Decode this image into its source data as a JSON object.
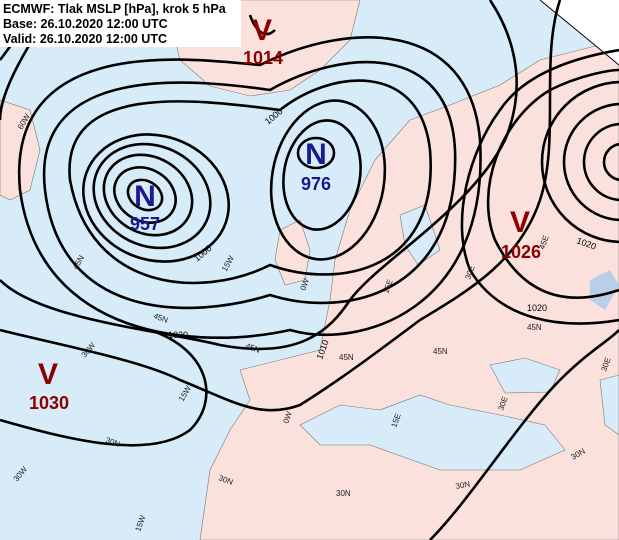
{
  "header": {
    "lines": [
      "ECMWF: Tlak MSLP [hPa], krok 5 hPa",
      "Base: 26.10.2020 12:00 UTC",
      "Valid: 26.10.2020 12:00 UTC"
    ]
  },
  "centers": [
    {
      "symbol": "V",
      "value": 1014
    },
    {
      "symbol": "N",
      "value": 957
    },
    {
      "symbol": "N",
      "value": 976
    },
    {
      "symbol": "V",
      "value": 1026
    },
    {
      "symbol": "V",
      "value": 1030
    }
  ],
  "isobar_labels": [
    "1000",
    "1000",
    "1020",
    "1010",
    "1020",
    "1020"
  ],
  "grid_labels": [
    "60W",
    "45N",
    "30W",
    "15W",
    "30N",
    "30W",
    "30N",
    "15W",
    "0W",
    "15E",
    "30N",
    "30N",
    "45N",
    "45N",
    "30E",
    "30N",
    "15E",
    "30E",
    "45N",
    "45E",
    "45N",
    "45N",
    "15W",
    "0W",
    "30E"
  ]
}
